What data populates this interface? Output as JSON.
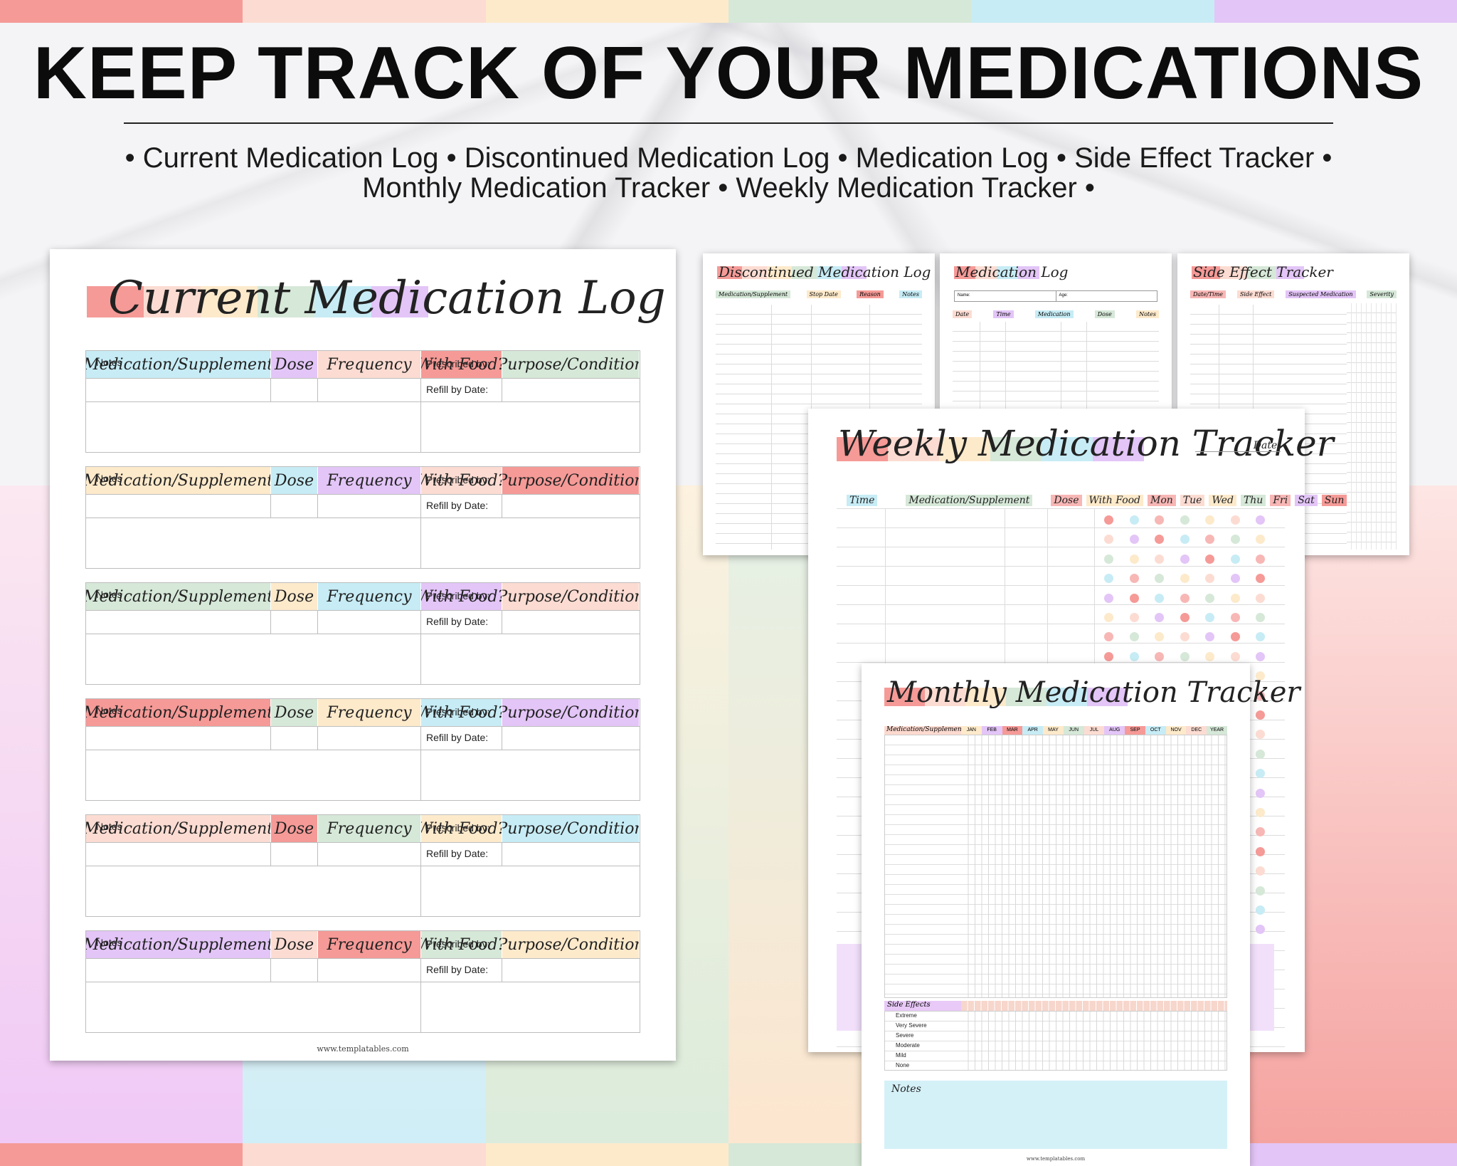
{
  "palette": {
    "coral": "#f59a97",
    "peach": "#fcdcd2",
    "cream": "#fdeacb",
    "sage": "#d6e8d8",
    "sky": "#c7ecf5",
    "lilac": "#e3c5f7",
    "rose": "#f7b7b5"
  },
  "header": {
    "headline": "KEEP TRACK OF YOUR MEDICATIONS",
    "subline_1": "• Current Medication Log • Discontinued Medication Log • Medication Log • Side Effect Tracker •",
    "subline_2": "Monthly Medication Tracker • Weekly Medication Tracker •"
  },
  "current_log": {
    "title": "Current Medication Log",
    "columns": [
      "Medication/Supplement",
      "Dose",
      "Frequency",
      "With Food?",
      "Purpose/Condition"
    ],
    "notes_label": "Notes",
    "prescribed_label": "Prescribed by:",
    "refill_label": "Refill by Date:",
    "entry_count": 6,
    "footer": "www.templatables.com"
  },
  "discontinued_log": {
    "title": "Discontinued Medication Log",
    "columns": [
      "Medication/Supplement",
      "Stop Date",
      "Reason",
      "Notes"
    ]
  },
  "medication_log": {
    "title": "Medication Log",
    "name_label": "Name:",
    "age_label": "Age:",
    "columns": [
      "Date",
      "Time",
      "Medication",
      "Dose",
      "Notes"
    ]
  },
  "side_effect_tracker": {
    "title": "Side Effect Tracker",
    "columns": [
      "Date/Time",
      "Side Effect",
      "Suspected Medication",
      "Severity"
    ]
  },
  "weekly_tracker": {
    "title": "Weekly Medication Tracker",
    "date_label": "Date:",
    "columns": [
      "Time",
      "Medication/Supplement",
      "Dose",
      "With Food",
      "Mon",
      "Tue",
      "Wed",
      "Thu",
      "Fri",
      "Sat",
      "Sun"
    ]
  },
  "monthly_tracker": {
    "title": "Monthly Medication Tracker",
    "column_head": "Medication/Supplements",
    "months": [
      "JAN",
      "FEB",
      "MAR",
      "APR",
      "MAY",
      "JUN",
      "JUL",
      "AUG",
      "SEP",
      "OCT",
      "NOV",
      "DEC",
      "YEAR"
    ],
    "side_effects_head": "Side Effects",
    "severity_levels": [
      "Extreme",
      "Very Severe",
      "Severe",
      "Moderate",
      "Mild",
      "None"
    ],
    "notes_label": "Notes",
    "footer": "www.templatables.com"
  }
}
